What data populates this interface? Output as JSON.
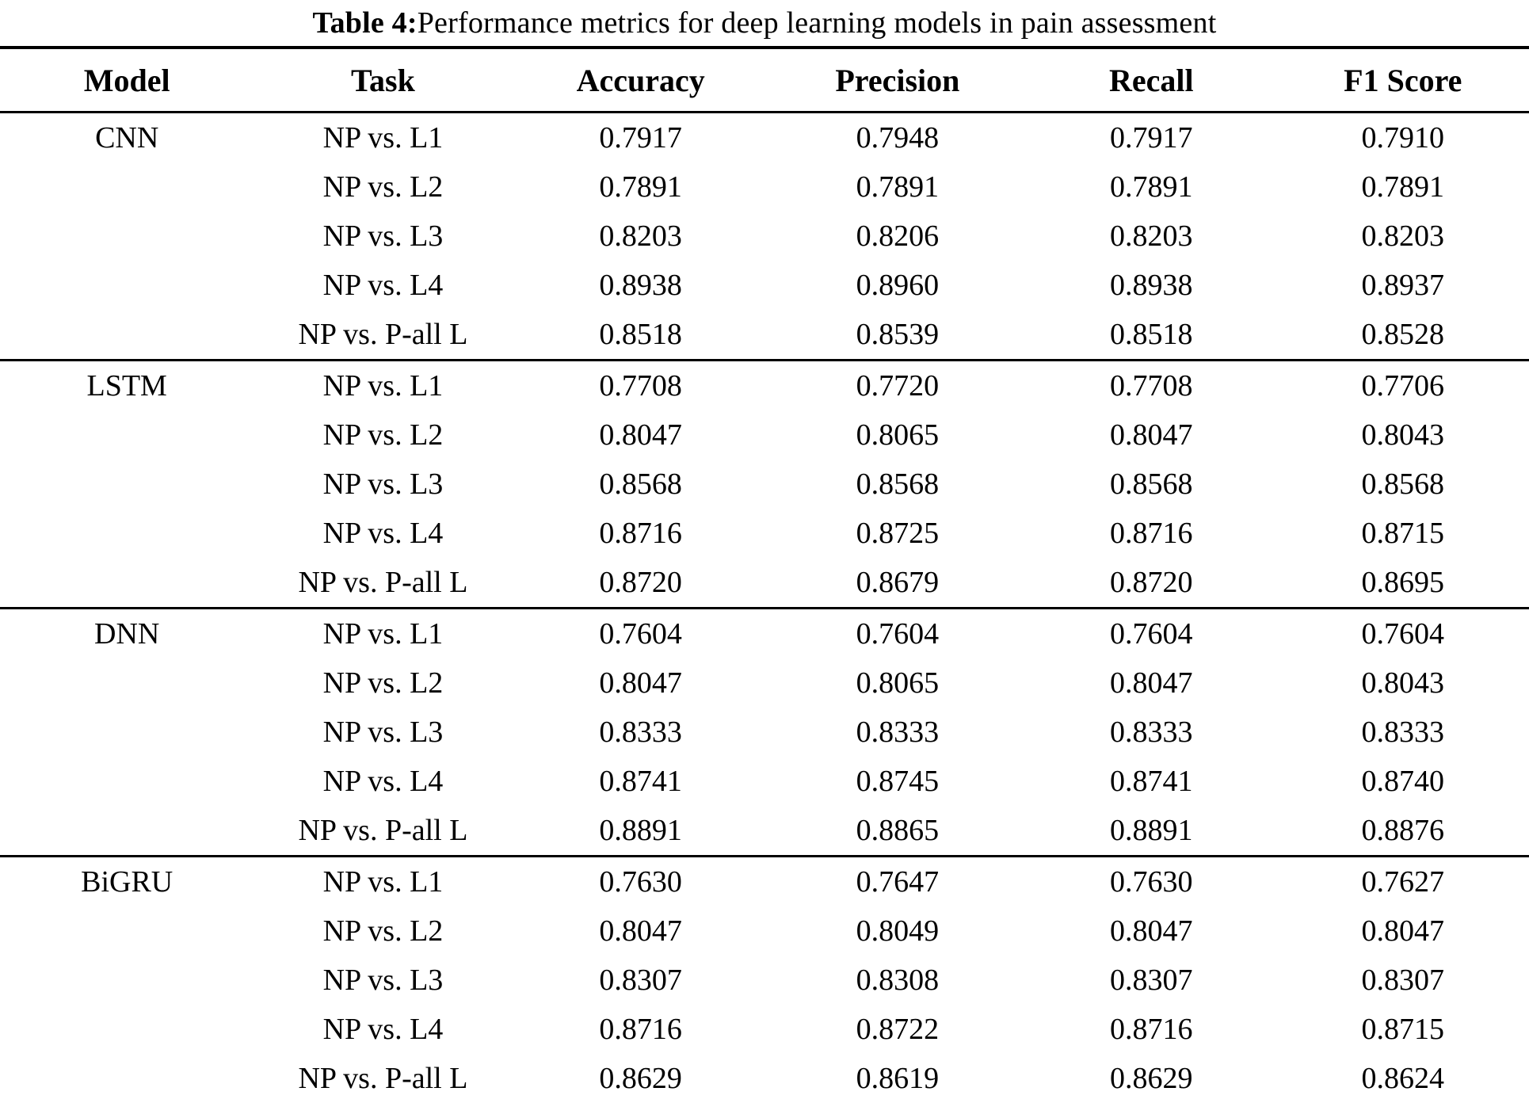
{
  "caption": {
    "label": "Table 4:",
    "text": " Performance metrics for deep learning models in pain assessment"
  },
  "columns": [
    "Model",
    "Task",
    "Accuracy",
    "Precision",
    "Recall",
    "F1 Score"
  ],
  "colors": {
    "text": "#000000",
    "background": "#ffffff",
    "rule": "#000000"
  },
  "chart_data": {
    "type": "table",
    "title": "Table 4: Performance metrics for deep learning models in pain assessment",
    "columns": [
      "Model",
      "Task",
      "Accuracy",
      "Precision",
      "Recall",
      "F1 Score"
    ],
    "groups": [
      {
        "model": "CNN",
        "rows": [
          {
            "task": "NP vs. L1",
            "accuracy": "0.7917",
            "precision": "0.7948",
            "recall": "0.7917",
            "f1": "0.7910"
          },
          {
            "task": "NP vs. L2",
            "accuracy": "0.7891",
            "precision": "0.7891",
            "recall": "0.7891",
            "f1": "0.7891"
          },
          {
            "task": "NP vs. L3",
            "accuracy": "0.8203",
            "precision": "0.8206",
            "recall": "0.8203",
            "f1": "0.8203"
          },
          {
            "task": "NP vs. L4",
            "accuracy": "0.8938",
            "precision": "0.8960",
            "recall": "0.8938",
            "f1": "0.8937"
          },
          {
            "task": "NP vs. P-all L",
            "accuracy": "0.8518",
            "precision": "0.8539",
            "recall": "0.8518",
            "f1": "0.8528"
          }
        ]
      },
      {
        "model": "LSTM",
        "rows": [
          {
            "task": "NP vs. L1",
            "accuracy": "0.7708",
            "precision": "0.7720",
            "recall": "0.7708",
            "f1": "0.7706"
          },
          {
            "task": "NP vs. L2",
            "accuracy": "0.8047",
            "precision": "0.8065",
            "recall": "0.8047",
            "f1": "0.8043"
          },
          {
            "task": "NP vs. L3",
            "accuracy": "0.8568",
            "precision": "0.8568",
            "recall": "0.8568",
            "f1": "0.8568"
          },
          {
            "task": "NP vs. L4",
            "accuracy": "0.8716",
            "precision": "0.8725",
            "recall": "0.8716",
            "f1": "0.8715"
          },
          {
            "task": "NP vs. P-all L",
            "accuracy": "0.8720",
            "precision": "0.8679",
            "recall": "0.8720",
            "f1": "0.8695"
          }
        ]
      },
      {
        "model": "DNN",
        "rows": [
          {
            "task": "NP vs. L1",
            "accuracy": "0.7604",
            "precision": "0.7604",
            "recall": "0.7604",
            "f1": "0.7604"
          },
          {
            "task": "NP vs. L2",
            "accuracy": "0.8047",
            "precision": "0.8065",
            "recall": "0.8047",
            "f1": "0.8043"
          },
          {
            "task": "NP vs. L3",
            "accuracy": "0.8333",
            "precision": "0.8333",
            "recall": "0.8333",
            "f1": "0.8333"
          },
          {
            "task": "NP vs. L4",
            "accuracy": "0.8741",
            "precision": "0.8745",
            "recall": "0.8741",
            "f1": "0.8740"
          },
          {
            "task": "NP vs. P-all L",
            "accuracy": "0.8891",
            "precision": "0.8865",
            "recall": "0.8891",
            "f1": "0.8876"
          }
        ]
      },
      {
        "model": "BiGRU",
        "rows": [
          {
            "task": "NP vs. L1",
            "accuracy": "0.7630",
            "precision": "0.7647",
            "recall": "0.7630",
            "f1": "0.7627"
          },
          {
            "task": "NP vs. L2",
            "accuracy": "0.8047",
            "precision": "0.8049",
            "recall": "0.8047",
            "f1": "0.8047"
          },
          {
            "task": "NP vs. L3",
            "accuracy": "0.8307",
            "precision": "0.8308",
            "recall": "0.8307",
            "f1": "0.8307"
          },
          {
            "task": "NP vs. L4",
            "accuracy": "0.8716",
            "precision": "0.8722",
            "recall": "0.8716",
            "f1": "0.8715"
          },
          {
            "task": "NP vs. P-all L",
            "accuracy": "0.8629",
            "precision": "0.8619",
            "recall": "0.8629",
            "f1": "0.8624"
          }
        ]
      }
    ]
  }
}
